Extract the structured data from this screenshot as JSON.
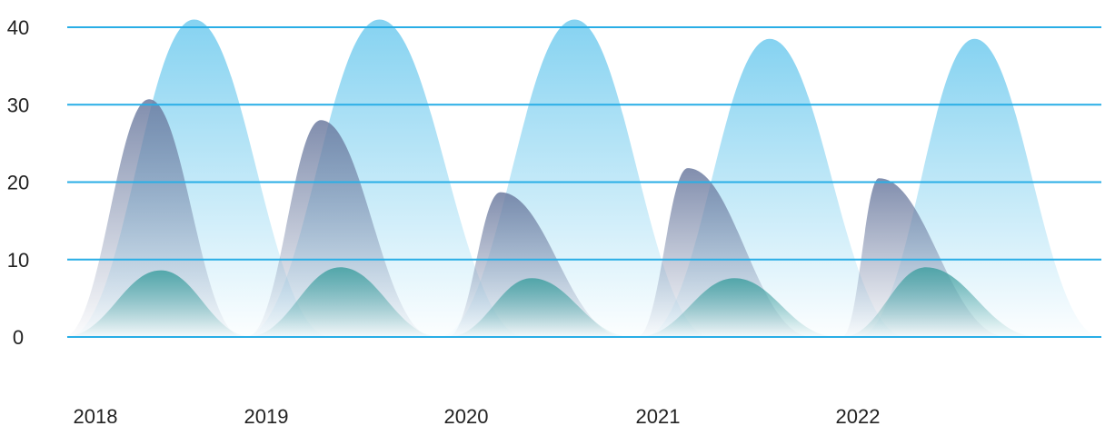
{
  "chart_data": {
    "type": "area",
    "title": "",
    "xlabel": "",
    "ylabel": "",
    "ylim": [
      0,
      40
    ],
    "y_ticks": [
      "0",
      "10",
      "20",
      "30",
      "40"
    ],
    "x_tick_labels": [
      "2018",
      "2019",
      "2020",
      "2021",
      "2022"
    ],
    "grid": true,
    "legend": "none",
    "series": [
      {
        "color": "#7fd0f0",
        "peaks": [
          {
            "start": 2018.0,
            "peak": 2018.65,
            "end": 2019.35,
            "value": 41
          },
          {
            "start": 2018.9,
            "peak": 2019.6,
            "end": 2020.35,
            "value": 41
          },
          {
            "start": 2019.9,
            "peak": 2020.6,
            "end": 2021.3,
            "value": 41
          },
          {
            "start": 2020.95,
            "peak": 2021.6,
            "end": 2022.3,
            "value": 38.5
          },
          {
            "start": 2022.05,
            "peak": 2022.65,
            "end": 2023.3,
            "value": 38.5
          }
        ]
      },
      {
        "color": "#6b7a9f",
        "peaks": [
          {
            "start": 2017.98,
            "peak": 2018.42,
            "end": 2018.9,
            "value": 30.7
          },
          {
            "start": 2018.92,
            "peak": 2019.3,
            "end": 2019.88,
            "value": 28
          },
          {
            "start": 2019.95,
            "peak": 2020.22,
            "end": 2020.86,
            "value": 18.7
          },
          {
            "start": 2020.92,
            "peak": 2021.18,
            "end": 2021.82,
            "value": 21.8
          },
          {
            "start": 2021.97,
            "peak": 2022.16,
            "end": 2022.82,
            "value": 20.5
          }
        ]
      },
      {
        "color": "#3f9fa0",
        "peaks": [
          {
            "start": 2017.98,
            "peak": 2018.48,
            "end": 2018.95,
            "value": 8.6
          },
          {
            "start": 2018.92,
            "peak": 2019.4,
            "end": 2019.92,
            "value": 9.0
          },
          {
            "start": 2019.95,
            "peak": 2020.38,
            "end": 2020.9,
            "value": 7.6
          },
          {
            "start": 2020.92,
            "peak": 2021.42,
            "end": 2021.95,
            "value": 7.6
          },
          {
            "start": 2021.97,
            "peak": 2022.4,
            "end": 2022.98,
            "value": 9.0
          }
        ]
      }
    ]
  }
}
